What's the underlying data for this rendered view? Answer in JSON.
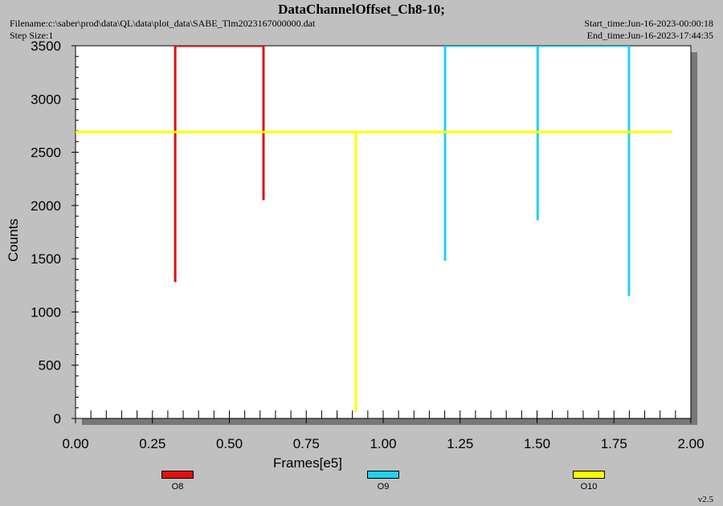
{
  "header": {
    "title": "DataChannelOffset_Ch8-10;",
    "filename": "Filename:c:\\saber\\prod\\data\\QL\\data\\plot_data\\SABE_Tlm2023167000000.dat",
    "step_size": "Step Size:1",
    "start_time": "Start_time:Jun-16-2023-00:00:18",
    "end_time": "End_time:Jun-16-2023-17:44:35"
  },
  "footer": {
    "version": "v2.5"
  },
  "chart_data": {
    "type": "line",
    "title": "DataChannelOffset_Ch8-10;",
    "xlabel": "Frames[e5]",
    "ylabel": "Counts",
    "xlim": [
      0,
      2.0
    ],
    "ylim": [
      0,
      3500
    ],
    "xticks": [
      "0.00",
      "0.25",
      "0.50",
      "0.75",
      "1.00",
      "1.25",
      "1.50",
      "1.75",
      "2.00"
    ],
    "yticks": [
      "0",
      "500",
      "1000",
      "1500",
      "2000",
      "2500",
      "3000",
      "3500"
    ],
    "legend_position": "bottom",
    "grid": false,
    "series": [
      {
        "name": "O8",
        "color": "#e01010",
        "points": [
          {
            "x": 0.324,
            "y": 3500
          },
          {
            "x": 0.324,
            "y": 1280
          },
          {
            "x": 0.324,
            "y": 3500
          },
          {
            "x": 0.611,
            "y": 3500
          },
          {
            "x": 0.611,
            "y": 2050
          },
          {
            "x": 0.611,
            "y": 3500
          }
        ]
      },
      {
        "name": "O9",
        "color": "#22d0ee",
        "points": [
          {
            "x": 1.201,
            "y": 3500
          },
          {
            "x": 1.201,
            "y": 1480
          },
          {
            "x": 1.201,
            "y": 3500
          },
          {
            "x": 1.502,
            "y": 3500
          },
          {
            "x": 1.502,
            "y": 1860
          },
          {
            "x": 1.502,
            "y": 3500
          },
          {
            "x": 1.799,
            "y": 3500
          },
          {
            "x": 1.799,
            "y": 1150
          },
          {
            "x": 1.799,
            "y": 3500
          }
        ]
      },
      {
        "name": "O10",
        "color": "#ffff00",
        "points": [
          {
            "x": 0.0,
            "y": 2690
          },
          {
            "x": 0.911,
            "y": 2690
          },
          {
            "x": 0.911,
            "y": 60
          },
          {
            "x": 0.911,
            "y": 2690
          },
          {
            "x": 1.94,
            "y": 2690
          }
        ]
      }
    ]
  }
}
